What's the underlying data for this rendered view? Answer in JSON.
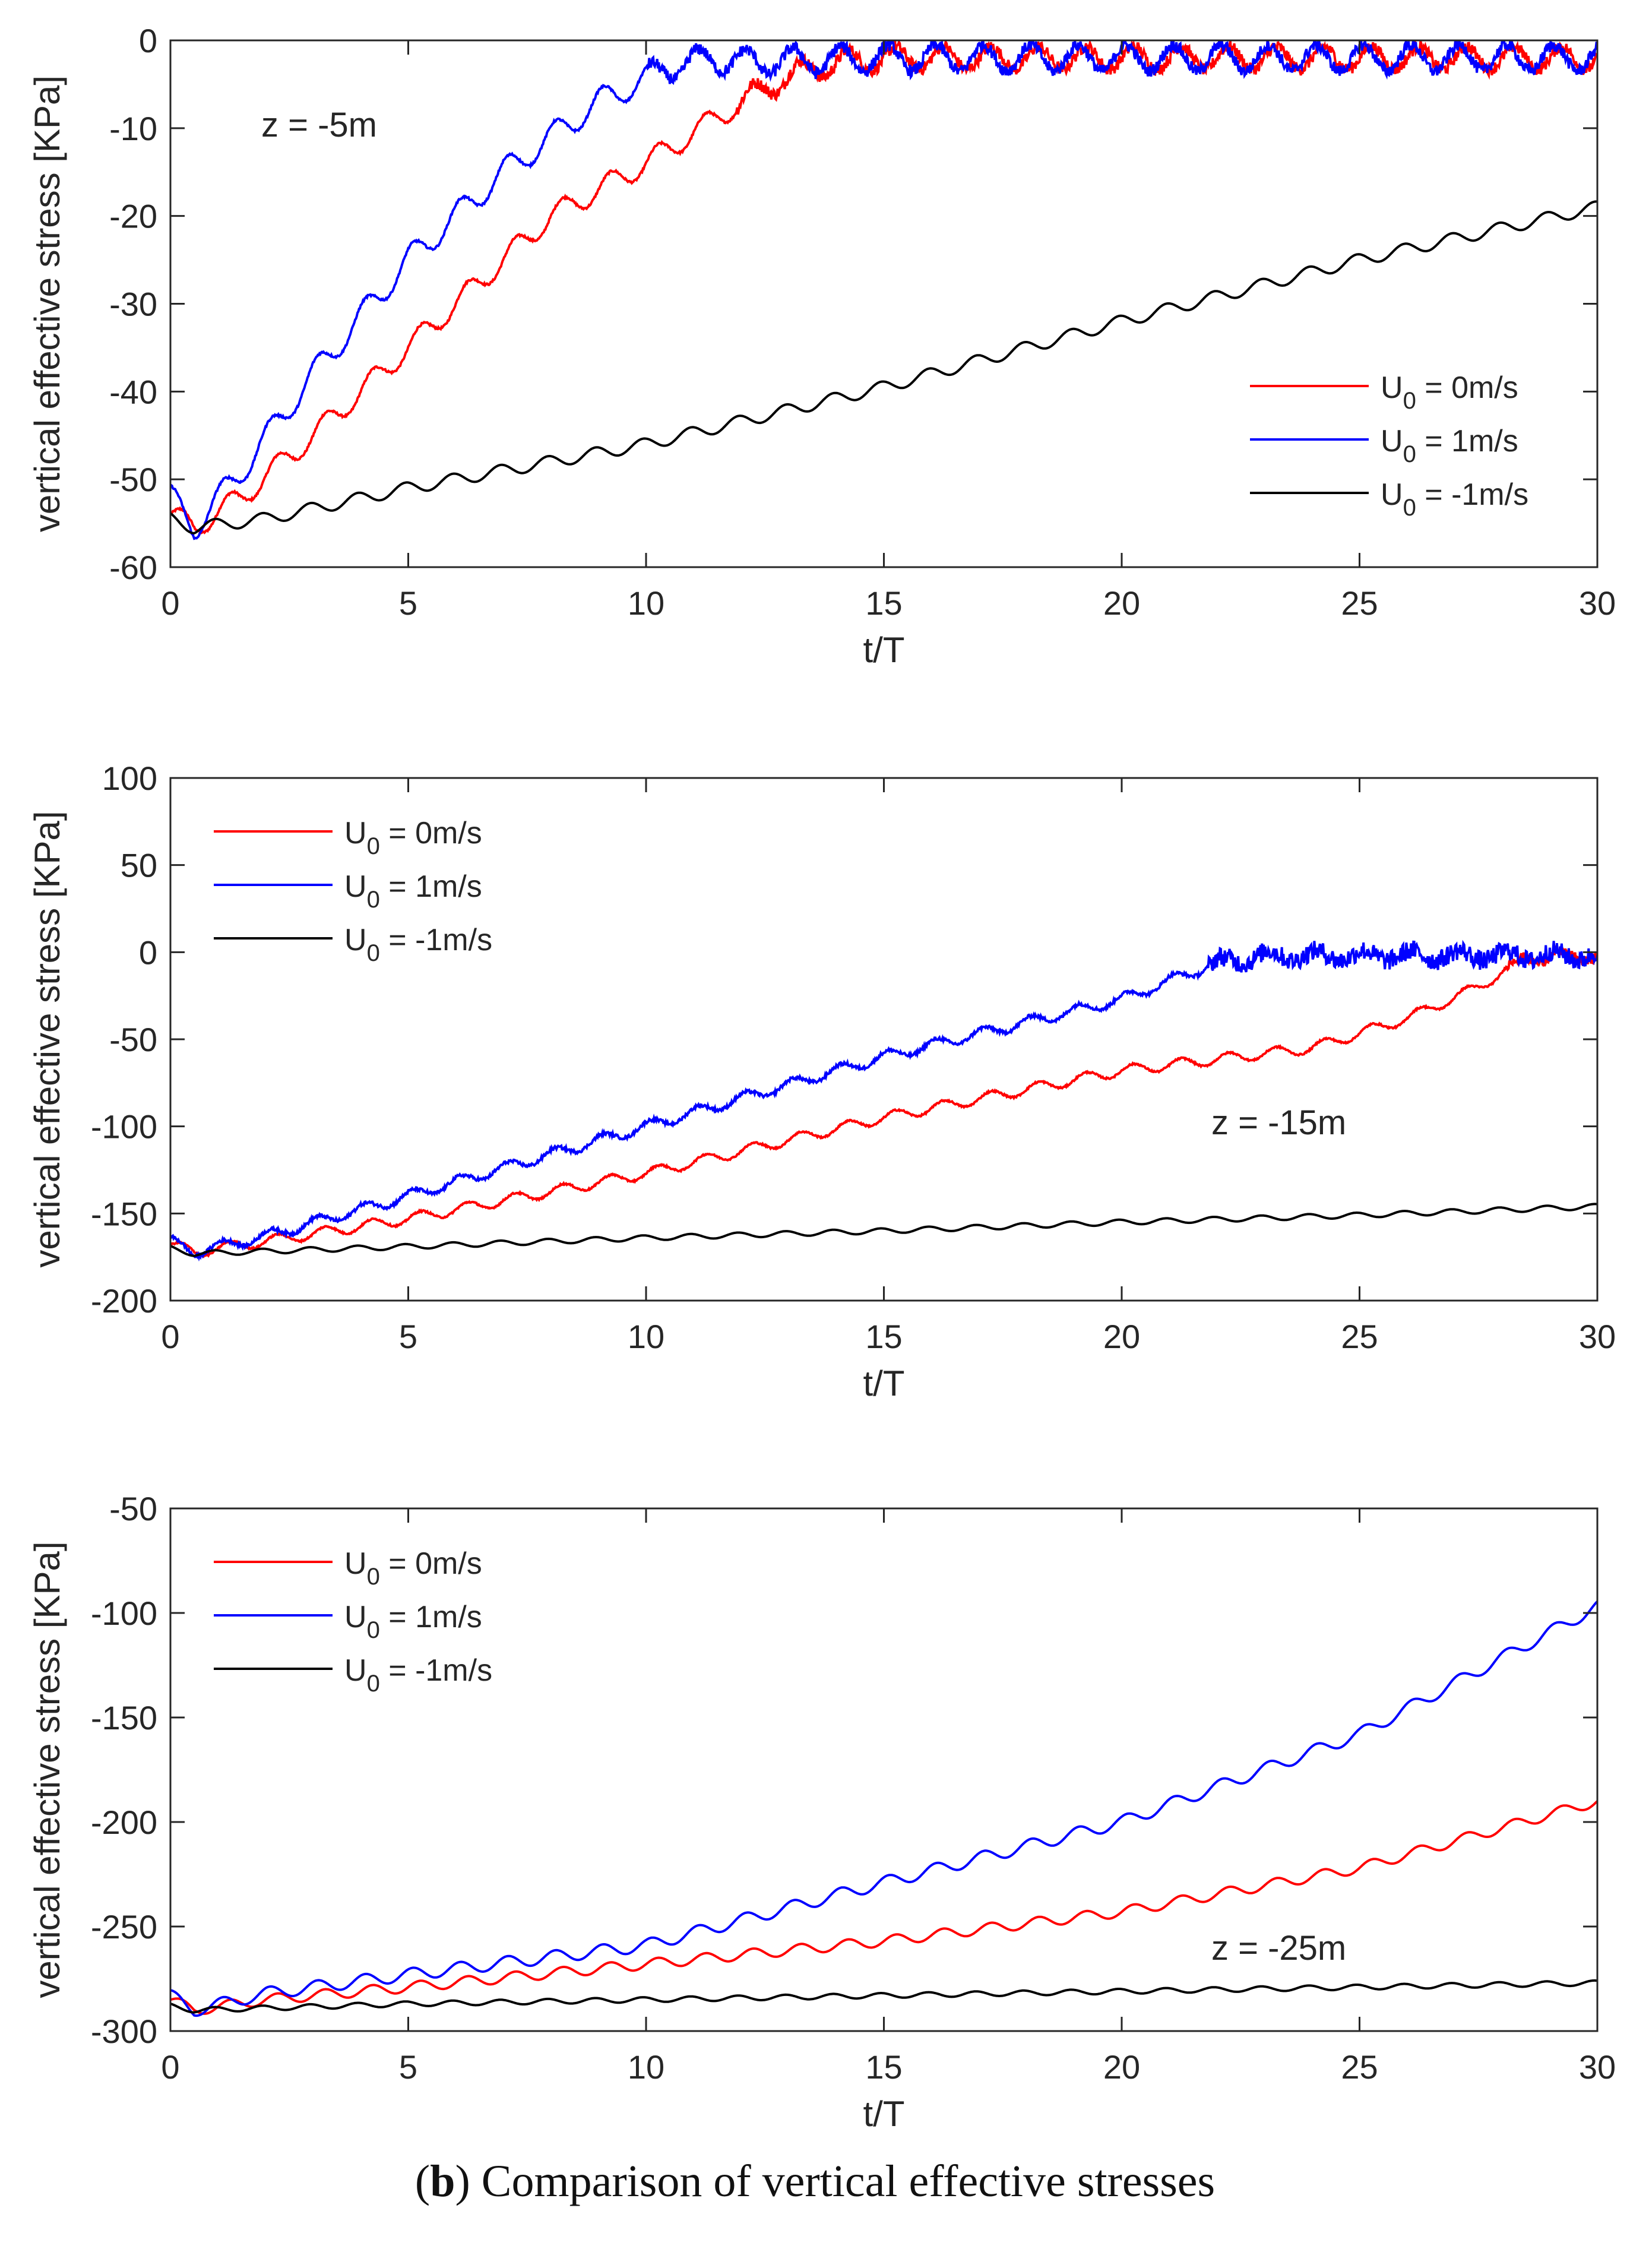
{
  "caption": {
    "open_paren": "(",
    "label": "b",
    "close_paren": ")",
    "text": " Comparison of vertical effective stresses"
  },
  "colors": {
    "u0_0": "#ff0000",
    "u0_1": "#0000ff",
    "u0_m1": "#000000"
  },
  "chart_data": [
    {
      "type": "line",
      "title": "",
      "annotation": "z = -5m",
      "xlabel": "t/T",
      "ylabel": "vertical effective stress [KPa]",
      "xlim": [
        0,
        30
      ],
      "ylim": [
        -60,
        0
      ],
      "xticks": [
        0,
        5,
        10,
        15,
        20,
        25,
        30
      ],
      "yticks": [
        -60,
        -50,
        -40,
        -30,
        -20,
        -10,
        0
      ],
      "legend": "right",
      "series": [
        {
          "name": "U_0 = 0m/s",
          "sub": "0",
          "suffix": " = 0m/s",
          "color": "#ff0000",
          "osc": 1.3,
          "noise": 1.0,
          "x": [
            0,
            0.5,
            1.5,
            3,
            5,
            8,
            10,
            12,
            13,
            14,
            15,
            20,
            25,
            30
          ],
          "y": [
            -54,
            -55.5,
            -52,
            -45,
            -35,
            -20,
            -14,
            -7,
            -4,
            -2.5,
            -2,
            -2,
            -2,
            -2
          ]
        },
        {
          "name": "U_0 = 1m/s",
          "sub": "0",
          "suffix": " = 1m/s",
          "color": "#0000ff",
          "osc": 1.5,
          "noise": 1.0,
          "x": [
            0,
            0.5,
            1.5,
            3,
            5,
            7,
            9,
            10.5,
            11.5,
            12,
            15,
            20,
            25,
            30
          ],
          "y": [
            -52,
            -55.5,
            -49,
            -38,
            -25,
            -15,
            -7,
            -3,
            -2,
            -2.5,
            -2,
            -2,
            -2,
            -2
          ]
        },
        {
          "name": "U_0 = -1m/s",
          "sub": "0",
          "suffix": " = -1m/s",
          "color": "#000000",
          "osc": 0.7,
          "noise": 0,
          "x": [
            0,
            0.5,
            2,
            5,
            10,
            15,
            20,
            25,
            30
          ],
          "y": [
            -54.5,
            -55.5,
            -54.5,
            -51,
            -46,
            -39.5,
            -32,
            -25,
            -19
          ]
        }
      ]
    },
    {
      "type": "line",
      "title": "",
      "annotation": "z = -15m",
      "xlabel": "t/T",
      "ylabel": "vertical effective stress [KPa]",
      "xlim": [
        0,
        30
      ],
      "ylim": [
        -200,
        100
      ],
      "xticks": [
        0,
        5,
        10,
        15,
        20,
        25,
        30
      ],
      "yticks": [
        -200,
        -150,
        -100,
        -50,
        0,
        50,
        100
      ],
      "legend": "top-left",
      "series": [
        {
          "name": "U_0 = 0m/s",
          "sub": "0",
          "suffix": " = 0m/s",
          "color": "#ff0000",
          "osc": 3,
          "noise": 4,
          "x": [
            0,
            0.5,
            2,
            5,
            10,
            15,
            20,
            24,
            26,
            27.5,
            28.5,
            30
          ],
          "y": [
            -168,
            -172,
            -166,
            -153,
            -127,
            -95,
            -68,
            -55,
            -38,
            -20,
            -3,
            -2
          ]
        },
        {
          "name": "U_0 = 1m/s",
          "sub": "0",
          "suffix": " = 1m/s",
          "color": "#0000ff",
          "osc": 3,
          "noise": 8,
          "x": [
            0,
            0.5,
            2,
            5,
            10,
            15,
            20,
            22,
            23,
            30
          ],
          "y": [
            -166,
            -172,
            -163,
            -140,
            -100,
            -60,
            -27,
            -6,
            -2,
            -2
          ]
        },
        {
          "name": "U_0 = -1m/s",
          "sub": "0",
          "suffix": " = -1m/s",
          "color": "#000000",
          "osc": 1.5,
          "noise": 0,
          "x": [
            0,
            0.5,
            5,
            10,
            15,
            20,
            25,
            30
          ],
          "y": [
            -170,
            -173,
            -169,
            -164,
            -160,
            -155,
            -151,
            -146
          ]
        }
      ]
    },
    {
      "type": "line",
      "title": "",
      "annotation": "z = -25m",
      "xlabel": "t/T",
      "ylabel": "vertical effective stress [KPa]",
      "xlim": [
        0,
        30
      ],
      "ylim": [
        -300,
        -50
      ],
      "xticks": [
        0,
        5,
        10,
        15,
        20,
        25,
        30
      ],
      "yticks": [
        -300,
        -250,
        -200,
        -150,
        -100,
        -50
      ],
      "legend": "top-left",
      "series": [
        {
          "name": "U_0 = 0m/s",
          "sub": "0",
          "suffix": " = 0m/s",
          "color": "#ff0000",
          "osc": 2.5,
          "noise": 0,
          "x": [
            0,
            0.5,
            2,
            5,
            10,
            15,
            20,
            25,
            30
          ],
          "y": [
            -285,
            -290,
            -285,
            -279,
            -268,
            -257,
            -243,
            -222,
            -190
          ]
        },
        {
          "name": "U_0 = 1m/s",
          "sub": "0",
          "suffix": " = 1m/s",
          "color": "#0000ff",
          "osc": 3,
          "noise": 0,
          "x": [
            0,
            0.5,
            2,
            5,
            10,
            15,
            20,
            25,
            30
          ],
          "y": [
            -283,
            -290,
            -282,
            -273,
            -259,
            -229,
            -200,
            -158,
            -97
          ]
        },
        {
          "name": "U_0 = -1m/s",
          "sub": "0",
          "suffix": " = -1m/s",
          "color": "#000000",
          "osc": 1.2,
          "noise": 0,
          "x": [
            0,
            0.5,
            5,
            10,
            15,
            20,
            25,
            30
          ],
          "y": [
            -288,
            -290,
            -287,
            -285,
            -283,
            -281,
            -279,
            -277
          ]
        }
      ]
    }
  ]
}
